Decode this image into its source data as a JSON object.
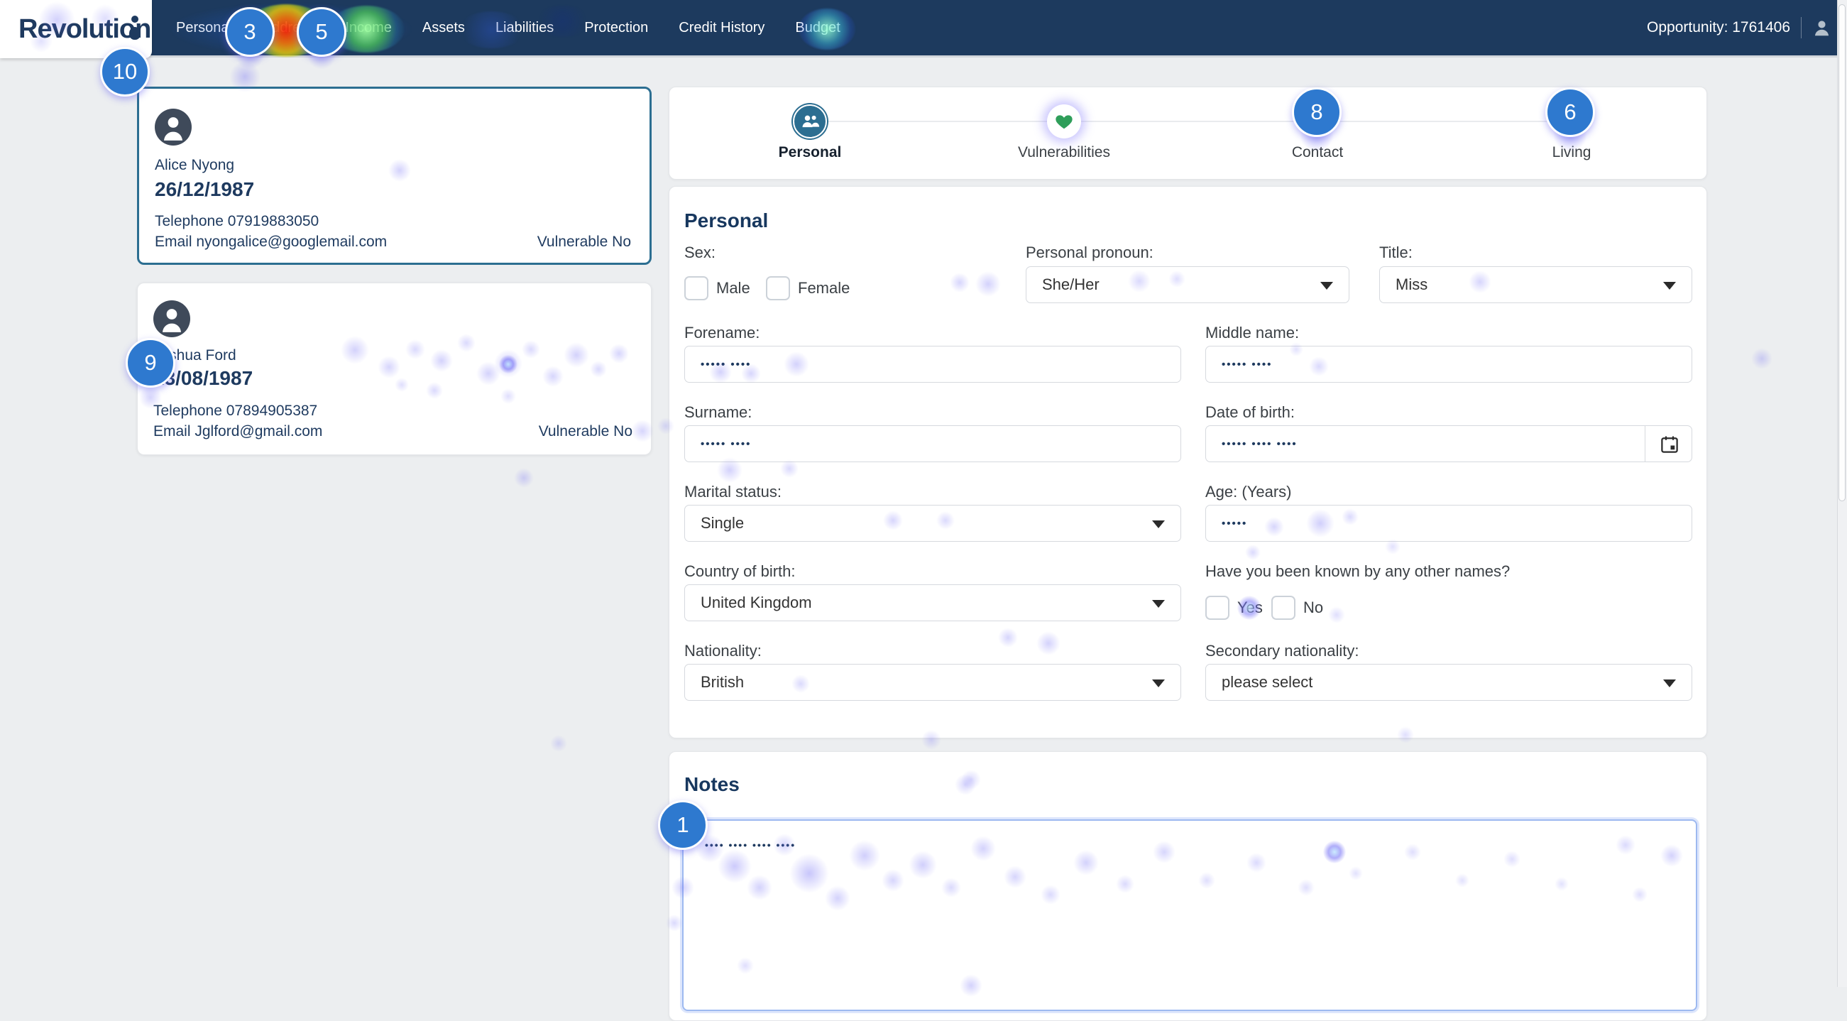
{
  "brand": {
    "name": "Revolution"
  },
  "nav": {
    "items": [
      {
        "id": "personal",
        "label": "Personal"
      },
      {
        "id": "address",
        "label": "Address"
      },
      {
        "id": "income",
        "label": "Income"
      },
      {
        "id": "assets",
        "label": "Assets"
      },
      {
        "id": "liabilities",
        "label": "Liabilities"
      },
      {
        "id": "protection",
        "label": "Protection"
      },
      {
        "id": "credit-history",
        "label": "Credit History"
      },
      {
        "id": "budget",
        "label": "Budget"
      }
    ],
    "opportunity_label": "Opportunity: 1761406"
  },
  "clients": [
    {
      "name": "Alice Nyong",
      "dob": "26/12/1987",
      "phone": "Telephone 07919883050",
      "email": "Email nyongalice@googlemail.com",
      "vulnerable": "Vulnerable No"
    },
    {
      "name": "Joshua Ford",
      "dob": "23/08/1987",
      "phone": "Telephone 07894905387",
      "email": "Email Jglford@gmail.com",
      "vulnerable": "Vulnerable No"
    }
  ],
  "stepper": {
    "steps": [
      {
        "label": "Personal"
      },
      {
        "label": "Vulnerabilities"
      },
      {
        "label": "Contact"
      },
      {
        "label": "Living"
      }
    ]
  },
  "form": {
    "section_title": "Personal",
    "sex_label": "Sex:",
    "male_label": "Male",
    "female_label": "Female",
    "pronoun_label": "Personal pronoun:",
    "pronoun_value": "She/Her",
    "title_label": "Title:",
    "title_value": "Miss",
    "forename_label": "Forename:",
    "forename_value": "••••• ••••",
    "middle_label": "Middle name:",
    "middle_value": "••••• ••••",
    "surname_label": "Surname:",
    "surname_value": "••••• ••••",
    "dob_label": "Date of birth:",
    "dob_value": "••••• •••• ••••",
    "marital_label": "Marital status:",
    "marital_value": "Single",
    "age_label": "Age: (Years)",
    "age_value": "•••••",
    "country_label": "Country of birth:",
    "country_value": "United Kingdom",
    "known_label": "Have you been known by any other names?",
    "yes_label": "Yes",
    "no_label": "No",
    "nationality_label": "Nationality:",
    "nationality_value": "British",
    "secondary_label": "Secondary nationality:",
    "secondary_value": "please select"
  },
  "notes": {
    "title": "Notes",
    "value": "•••• •••• •••• ••••"
  },
  "annotations": {
    "badges": [
      {
        "label": "1"
      },
      {
        "label": "3"
      },
      {
        "label": "5"
      },
      {
        "label": "6"
      },
      {
        "label": "8"
      },
      {
        "label": "9"
      },
      {
        "label": "10"
      }
    ]
  },
  "colors": {
    "nav_bar": "#1d3a5e",
    "accent_navy": "#1e3a5f",
    "badge_blue": "#2e79cf",
    "selected_card_border": "#2c6e91",
    "heart_green": "#2f9e5a"
  }
}
